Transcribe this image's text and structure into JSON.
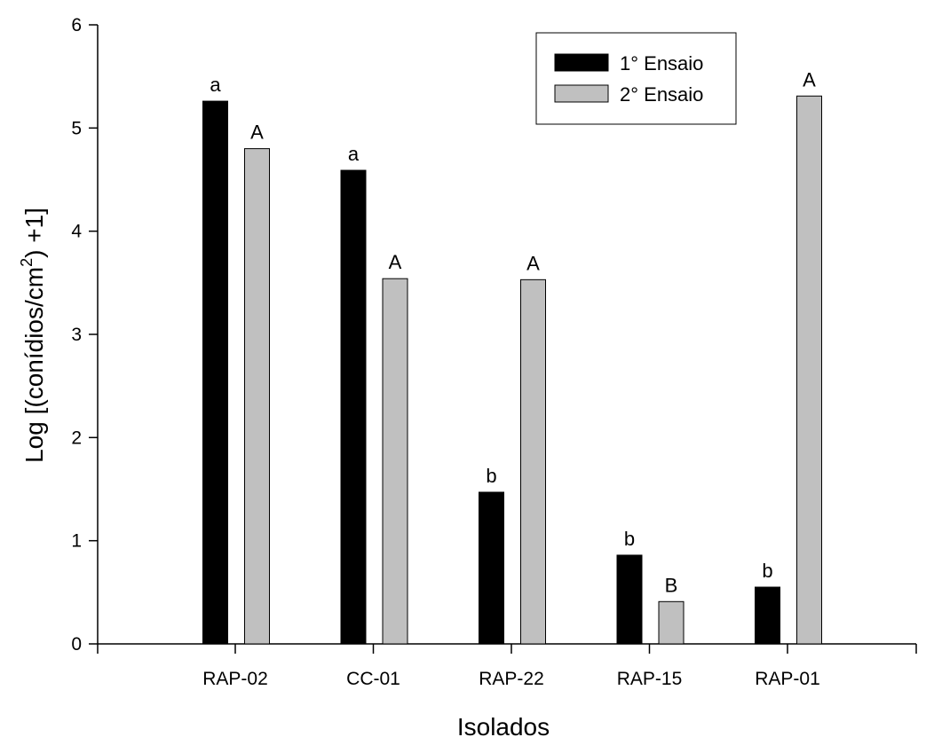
{
  "chart_data": {
    "type": "bar",
    "title": "",
    "xlabel": "Isolados",
    "ylabel": {
      "prefix": "Log [(conídios/cm",
      "superscript": "2",
      "suffix": ") +1]"
    },
    "ylim": [
      0,
      6
    ],
    "yticks": [
      "0",
      "1",
      "2",
      "3",
      "4",
      "5",
      "6"
    ],
    "categories": [
      "RAP-02",
      "CC-01",
      "RAP-22",
      "RAP-15",
      "RAP-01"
    ],
    "series": [
      {
        "name": "1° Ensaio",
        "color": "#000000",
        "values": [
          5.26,
          4.59,
          1.47,
          0.86,
          0.55
        ],
        "labels": [
          "a",
          "a",
          "b",
          "b",
          "b"
        ]
      },
      {
        "name": "2° Ensaio",
        "color": "#c0c0c0",
        "values": [
          4.8,
          3.54,
          3.53,
          0.41,
          5.31
        ],
        "labels": [
          "A",
          "A",
          "A",
          "B",
          "A"
        ]
      }
    ],
    "legend_position": "top-right",
    "grid": false
  }
}
